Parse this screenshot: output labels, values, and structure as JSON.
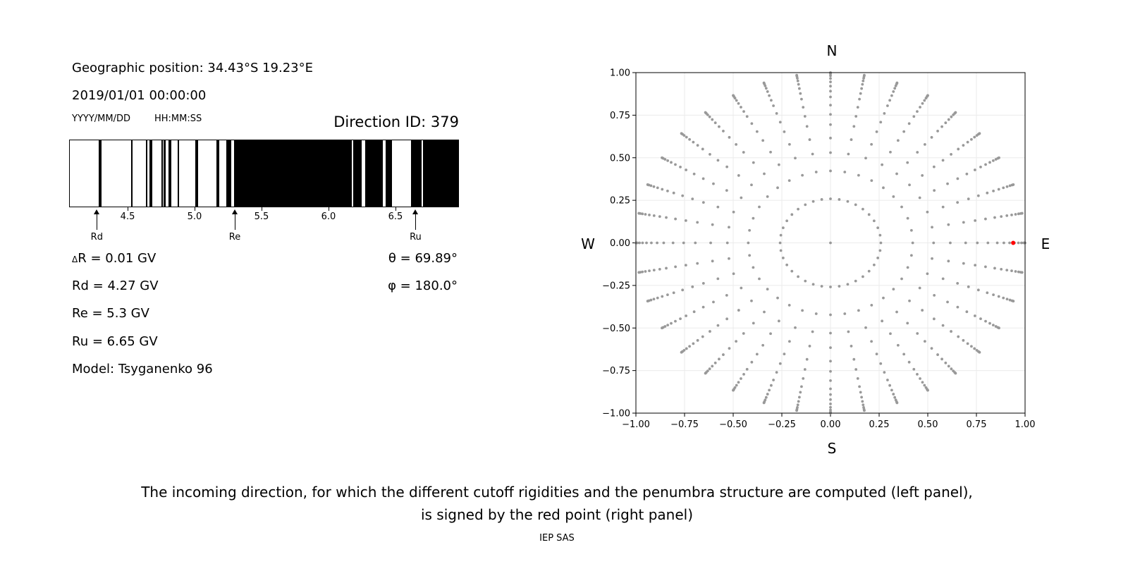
{
  "info": {
    "position": "Geographic position: 34.43°S 19.23°E",
    "datetime": "2019/01/01 00:00:00",
    "date_format": "YYYY/MM/DD",
    "time_format": "HH:MM:SS",
    "direction_id": "Direction ID: 379",
    "delta_r": "R = 0.01 GV",
    "delta_symbol": "Δ",
    "rd": "Rd = 4.27 GV",
    "re": "Re = 5.3 GV",
    "ru": "Ru = 6.65 GV",
    "model": "Model: Tsyganenko 96",
    "theta": "θ = 69.89°",
    "phi": "φ = 180.0°"
  },
  "compass": {
    "n": "N",
    "s": "S",
    "w": "W",
    "e": "E"
  },
  "caption": {
    "line1": "The incoming direction, for which the different cutoff rigidities and the penumbra structure are computed (left panel),",
    "line2": "is signed by the red point (right panel)",
    "credit": "IEP SAS"
  },
  "chart_data": [
    {
      "type": "bar",
      "description_kind": "penumbra",
      "xlim": [
        4.063,
        6.974
      ],
      "xticks": [
        "4.5",
        "5.0",
        "5.5",
        "6.0",
        "6.5"
      ],
      "xtick_values": [
        4.5,
        5.0,
        5.5,
        6.0,
        6.5
      ],
      "forbidden_color": "#000000",
      "allowed_color": "#ffffff",
      "black_intervals": [
        [
          4.28,
          4.3
        ],
        [
          4.52,
          4.53
        ],
        [
          4.63,
          4.64
        ],
        [
          4.66,
          4.68
        ],
        [
          4.745,
          4.76
        ],
        [
          4.765,
          4.78
        ],
        [
          4.8,
          4.82
        ],
        [
          4.87,
          4.88
        ],
        [
          5.0,
          5.02
        ],
        [
          5.16,
          5.18
        ],
        [
          5.23,
          5.27
        ],
        [
          5.29,
          6.17
        ],
        [
          6.18,
          6.24
        ],
        [
          6.27,
          6.4
        ],
        [
          6.42,
          6.47
        ],
        [
          6.61,
          6.69
        ],
        [
          6.7,
          6.974
        ]
      ],
      "markers": [
        {
          "label": "Rd",
          "value": 4.27
        },
        {
          "label": "Re",
          "value": 5.3
        },
        {
          "label": "Ru",
          "value": 6.65
        }
      ]
    },
    {
      "type": "scatter",
      "xlim": [
        -1,
        1
      ],
      "ylim": [
        -1,
        1
      ],
      "xticks": [
        "−1.00",
        "−0.75",
        "−0.50",
        "−0.25",
        "0.00",
        "0.25",
        "0.50",
        "0.75",
        "1.00"
      ],
      "yticks": [
        "−1.00",
        "−0.75",
        "−0.50",
        "−0.25",
        "0.00",
        "0.25",
        "0.50",
        "0.75",
        "1.00"
      ],
      "tick_values": [
        -1,
        -0.75,
        -0.5,
        -0.25,
        0,
        0.25,
        0.5,
        0.75,
        1
      ],
      "grid": true,
      "point_color": "#999999",
      "highlight_color": "#ff0000",
      "azimuth_step_deg": 10,
      "zenith_deg": [
        15,
        25,
        32,
        38,
        44,
        49,
        54,
        59,
        63,
        67,
        71,
        75,
        79,
        83,
        87,
        90
      ],
      "highlight": {
        "x": 0.939,
        "y": 0.0
      }
    }
  ]
}
